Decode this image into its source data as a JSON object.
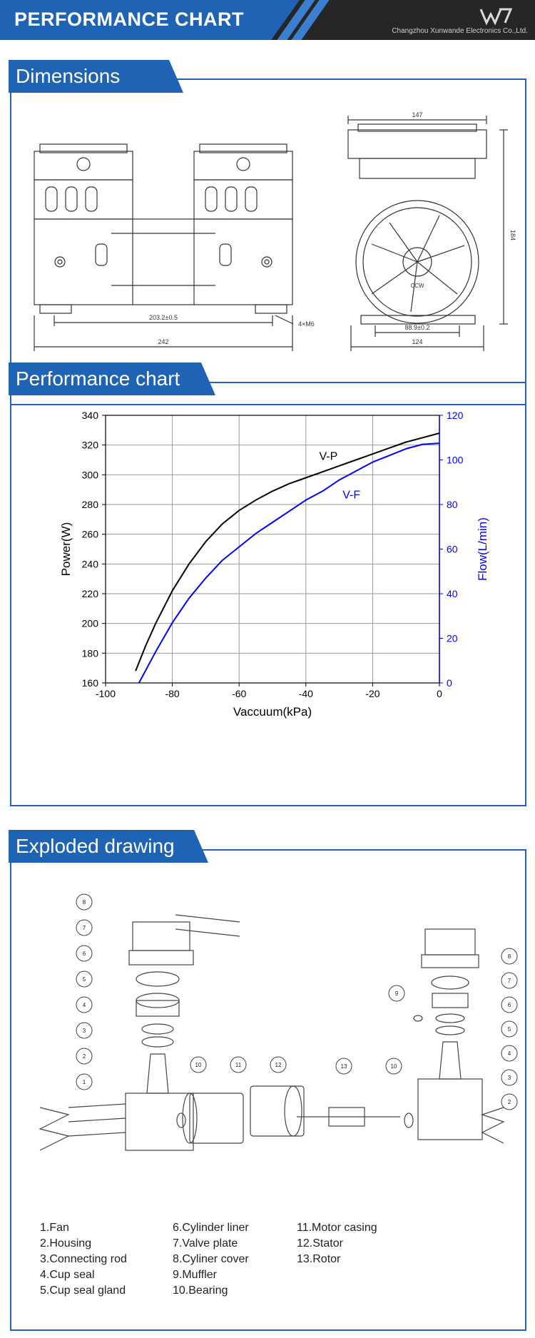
{
  "header": {
    "title": "PERFORMANCE CHART",
    "company": "Changzhou Xunwande Electronics Co.,Ltd."
  },
  "sections": {
    "dimensions": {
      "title": "Dimensions",
      "labels": {
        "inner_width": "203.2±0.5",
        "total_width": "242",
        "screw": "4×M6",
        "side_top": "147",
        "side_height": "184",
        "side_mount": "88.9±0.2",
        "side_bottom": "124",
        "rotation": "CCW"
      }
    },
    "performance": {
      "title": "Performance chart"
    },
    "exploded": {
      "title": "Exploded drawing",
      "parts_col1": [
        "1.Fan",
        "2.Housing",
        "3.Connecting rod",
        "4.Cup seal",
        "5.Cup seal gland"
      ],
      "parts_col2": [
        "6.Cylinder liner",
        "7.Valve plate",
        "8.Cyliner cover",
        "9.Muffler",
        "10.Bearing"
      ],
      "parts_col3": [
        "11.Motor casing",
        "12.Stator",
        "13.Rotor"
      ]
    }
  },
  "chart_data": {
    "type": "line",
    "xlabel": "Vaccuum(kPa)",
    "ylabel": "Power(W)",
    "y2label": "Flow(L/min)",
    "xlim": [
      -100,
      0
    ],
    "ylim": [
      160,
      340
    ],
    "y2lim": [
      0,
      120
    ],
    "x_ticks": [
      -100,
      -80,
      -60,
      -40,
      -20,
      0
    ],
    "y_ticks": [
      160,
      180,
      200,
      220,
      240,
      260,
      280,
      300,
      320,
      340
    ],
    "y2_ticks": [
      0,
      20,
      40,
      60,
      80,
      100,
      120
    ],
    "grid": true,
    "series": [
      {
        "name": "V-P",
        "axis": "left",
        "color": "#000000",
        "x": [
          -91,
          -88,
          -85,
          -80,
          -75,
          -70,
          -65,
          -60,
          -55,
          -50,
          -45,
          -40,
          -35,
          -30,
          -25,
          -20,
          -15,
          -10,
          -5,
          0
        ],
        "y": [
          168,
          185,
          200,
          222,
          240,
          255,
          267,
          276,
          283,
          289,
          294,
          298,
          302,
          306,
          310,
          314,
          318,
          322,
          325,
          328
        ]
      },
      {
        "name": "V-F",
        "axis": "right",
        "color": "#0000ff",
        "x": [
          -90,
          -85,
          -80,
          -75,
          -70,
          -65,
          -60,
          -55,
          -50,
          -45,
          -40,
          -35,
          -30,
          -25,
          -20,
          -15,
          -10,
          -5,
          0
        ],
        "y": [
          0,
          14,
          27,
          38,
          47,
          55,
          61,
          67,
          72,
          77,
          82,
          86,
          91,
          95,
          99,
          102,
          105,
          107,
          107.5
        ]
      }
    ]
  }
}
